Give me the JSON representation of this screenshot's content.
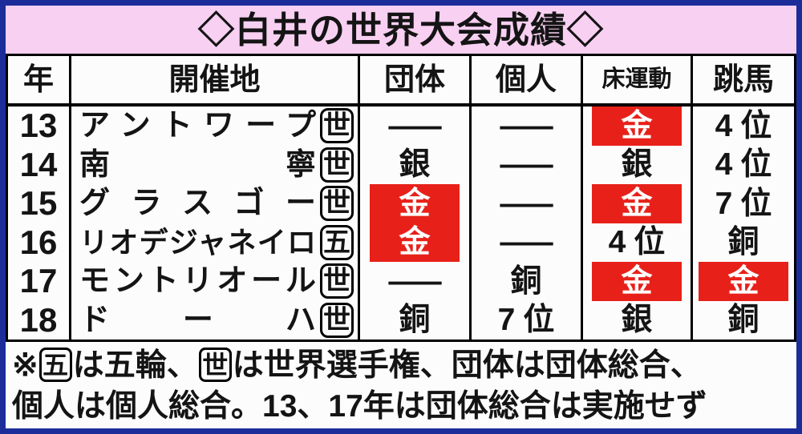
{
  "title": "◇白井の世界大会成績◇",
  "colors": {
    "frame_blue": "#1c2d9a",
    "title_pink": "#f8d0f2",
    "medal_red": "#e7211a",
    "paper": "#fdfcfd",
    "ink": "#141414"
  },
  "table": {
    "headers": [
      "年",
      "開催地",
      "団体",
      "個人",
      "床運動",
      "跳馬"
    ],
    "rows": [
      {
        "year": "13",
        "venue": "アントワープ",
        "mark": "世",
        "team": {
          "text": "—",
          "style": "dash"
        },
        "individual": {
          "text": "—",
          "style": "dash"
        },
        "floor": {
          "text": "金",
          "style": "gold"
        },
        "vault": {
          "text": "4位",
          "style": "plain"
        }
      },
      {
        "year": "14",
        "venue": "南寧",
        "mark": "世",
        "team": {
          "text": "銀",
          "style": "plain"
        },
        "individual": {
          "text": "—",
          "style": "dash"
        },
        "floor": {
          "text": "銀",
          "style": "plain"
        },
        "vault": {
          "text": "4位",
          "style": "plain"
        }
      },
      {
        "year": "15",
        "venue": "グラスゴー",
        "mark": "世",
        "team": {
          "text": "金",
          "style": "gold"
        },
        "individual": {
          "text": "—",
          "style": "dash"
        },
        "floor": {
          "text": "金",
          "style": "gold"
        },
        "vault": {
          "text": "7位",
          "style": "plain"
        }
      },
      {
        "year": "16",
        "venue": "リオデジャネイロ",
        "mark": "五",
        "team": {
          "text": "金",
          "style": "gold"
        },
        "individual": {
          "text": "—",
          "style": "dash"
        },
        "floor": {
          "text": "4位",
          "style": "plain"
        },
        "vault": {
          "text": "銅",
          "style": "plain"
        }
      },
      {
        "year": "17",
        "venue": "モントリオール",
        "mark": "世",
        "team": {
          "text": "—",
          "style": "dash"
        },
        "individual": {
          "text": "銅",
          "style": "plain"
        },
        "floor": {
          "text": "金",
          "style": "gold"
        },
        "vault": {
          "text": "金",
          "style": "gold"
        }
      },
      {
        "year": "18",
        "venue": "ドーハ",
        "mark": "世",
        "team": {
          "text": "銅",
          "style": "plain"
        },
        "individual": {
          "text": "7位",
          "style": "plain"
        },
        "floor": {
          "text": "銀",
          "style": "plain"
        },
        "vault": {
          "text": "銅",
          "style": "plain"
        }
      }
    ]
  },
  "footer": {
    "line1_segments": [
      {
        "t": "text",
        "v": "※"
      },
      {
        "t": "box",
        "v": "五"
      },
      {
        "t": "text",
        "v": "は五輪、"
      },
      {
        "t": "box",
        "v": "世"
      },
      {
        "t": "text",
        "v": "は世界選手権、団体は団体総合、"
      }
    ],
    "line2": "個人は個人総合。13、17年は団体総合は実施せず"
  },
  "chart_data": {
    "type": "table",
    "title": "◇白井の世界大会成績◇",
    "columns": [
      "年",
      "開催地",
      "団体",
      "個人",
      "床運動",
      "跳馬"
    ],
    "rows": [
      [
        "13",
        "アントワープ(世)",
        "—",
        "—",
        "金",
        "4位"
      ],
      [
        "14",
        "南寧(世)",
        "銀",
        "—",
        "銀",
        "4位"
      ],
      [
        "15",
        "グラスゴー(世)",
        "金",
        "—",
        "金",
        "7位"
      ],
      [
        "16",
        "リオデジャネイロ(五)",
        "金",
        "—",
        "4位",
        "銅"
      ],
      [
        "17",
        "モントリオール(世)",
        "—",
        "銅",
        "金",
        "金"
      ],
      [
        "18",
        "ドーハ(世)",
        "銅",
        "7位",
        "銀",
        "銅"
      ]
    ],
    "notes": "※五は五輪、世は世界選手権、団体は団体総合、個人は個人総合。13、17年は団体総合は実施せず",
    "highlight": "金は赤地に白抜きで強調"
  }
}
